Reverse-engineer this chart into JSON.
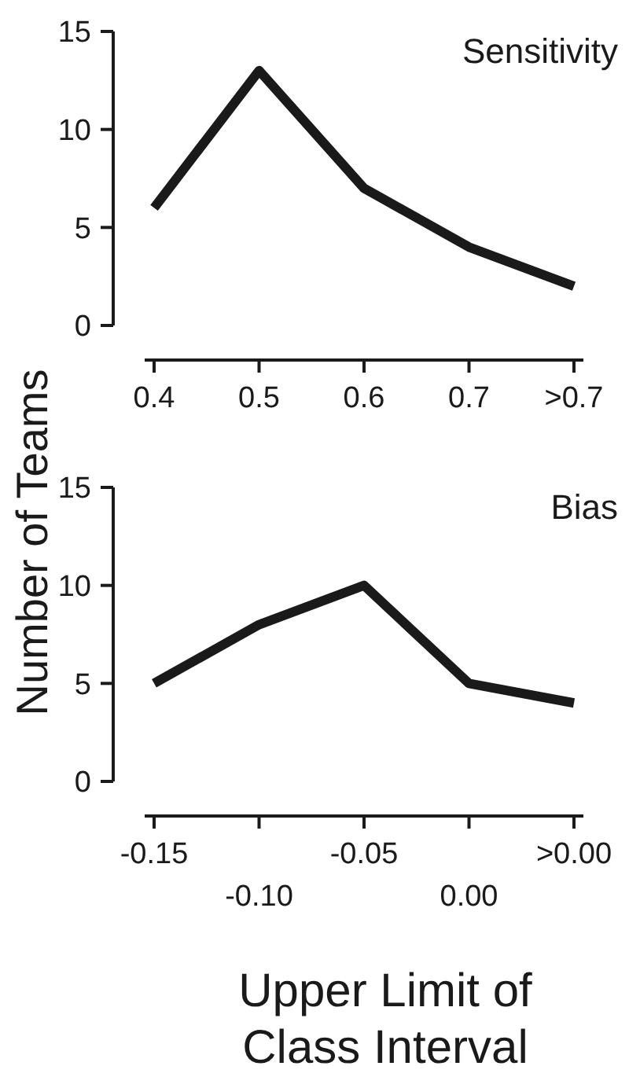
{
  "chart_data": [
    {
      "type": "line",
      "title": "Sensitivity",
      "ylabel": "Number of Teams",
      "categories": [
        "0.4",
        "0.5",
        "0.6",
        "0.7",
        ">0.7"
      ],
      "values": [
        6,
        13,
        7,
        4,
        2
      ],
      "color": "#1a1a1a",
      "ylim": [
        0,
        15
      ],
      "yticks": [
        0,
        5,
        10,
        15
      ],
      "grid": false,
      "marker": "none"
    },
    {
      "type": "line",
      "title": "Bias",
      "xlabel": "Upper Limit of Class Interval",
      "categories": [
        "-0.15",
        "-0.10",
        "-0.05",
        "0.00",
        ">0.00"
      ],
      "values": [
        5,
        8,
        10,
        5,
        4
      ],
      "color": "#1a1a1a",
      "ylim": [
        0,
        15
      ],
      "yticks": [
        0,
        5,
        10,
        15
      ],
      "grid": false,
      "marker": "none"
    }
  ]
}
